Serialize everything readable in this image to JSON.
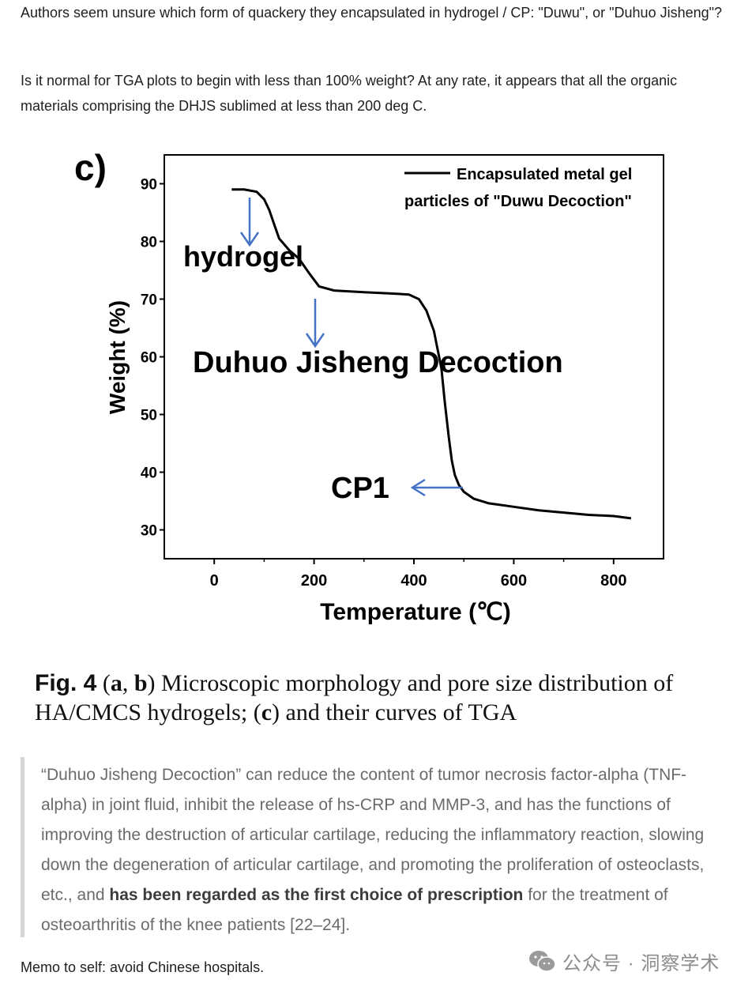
{
  "post": {
    "paragraph1": "Authors seem unsure which form of quackery they encapsulated in hydrogel / CP: \"Duwu\", or \"Duhuo Jisheng\"?",
    "paragraph2": "Is it normal for TGA plots to begin with less than 100% weight? At any rate, it appears that all the organic materials comprising the DHJS sublimed at less than 200 deg C.",
    "memo": "Memo to self: avoid Chinese hospitals."
  },
  "figure": {
    "panel_label": "c)",
    "annotations": {
      "hydrogel": "hydrogel",
      "duhuo": "Duhuo Jisheng Decoction",
      "cp1": "CP1"
    },
    "arrow_color": "#4472c4",
    "curve_color": "#000000"
  },
  "chart_data": {
    "type": "line",
    "xlabel": "Temperature (℃)",
    "ylabel": "Weight (%)",
    "xlim": [
      -100,
      900
    ],
    "ylim": [
      25,
      95
    ],
    "xticks": [
      0,
      200,
      400,
      600,
      800
    ],
    "yticks": [
      30,
      40,
      50,
      60,
      70,
      80,
      90
    ],
    "grid": false,
    "legend_position": "top-right",
    "series": [
      {
        "name": "Encapsulated metal gel particles of \"Duwu Decoction\"",
        "x": [
          35,
          60,
          85,
          100,
          110,
          120,
          130,
          140,
          150,
          170,
          190,
          210,
          240,
          300,
          350,
          390,
          410,
          425,
          440,
          455,
          462,
          470,
          476,
          482,
          490,
          500,
          520,
          550,
          600,
          650,
          700,
          750,
          800,
          835
        ],
        "y": [
          89,
          89,
          88.6,
          87.3,
          85.5,
          83,
          80.5,
          79.5,
          78.5,
          77,
          74.5,
          72.2,
          71.5,
          71.2,
          71,
          70.8,
          70,
          68,
          64.5,
          58,
          52,
          46,
          42,
          39.5,
          37.8,
          36.6,
          35.4,
          34.6,
          34,
          33.4,
          33,
          32.6,
          32.4,
          32
        ]
      }
    ]
  },
  "caption": {
    "fig_label": "Fig. 4",
    "open_paren": " (",
    "a": "a",
    "comma": ", ",
    "b": "b",
    "part1": ") Microscopic morphology and pore size distribution of HA/CMCS hydrogels; (",
    "c": "c",
    "part2": ") and their curves of TGA"
  },
  "quote": {
    "text_before": "“Duhuo Jisheng Decoction” can reduce the content of tumor necrosis factor-alpha (TNF-alpha) in joint fluid, inhibit the release of hs-CRP and MMP-3, and has the functions of improving the destruction of articular cartilage, reducing the inflammatory reaction, slowing down the degeneration of articular cartilage, and promoting the proliferation of osteoclasts, etc., and ",
    "text_bold": "has been regarded as the first choice of prescription",
    "text_after": " for the treatment of osteoarthritis of the knee patients [22–24]."
  },
  "watermark": {
    "icon": "wechat-icon",
    "text": "公众号 · 洞察学术"
  }
}
